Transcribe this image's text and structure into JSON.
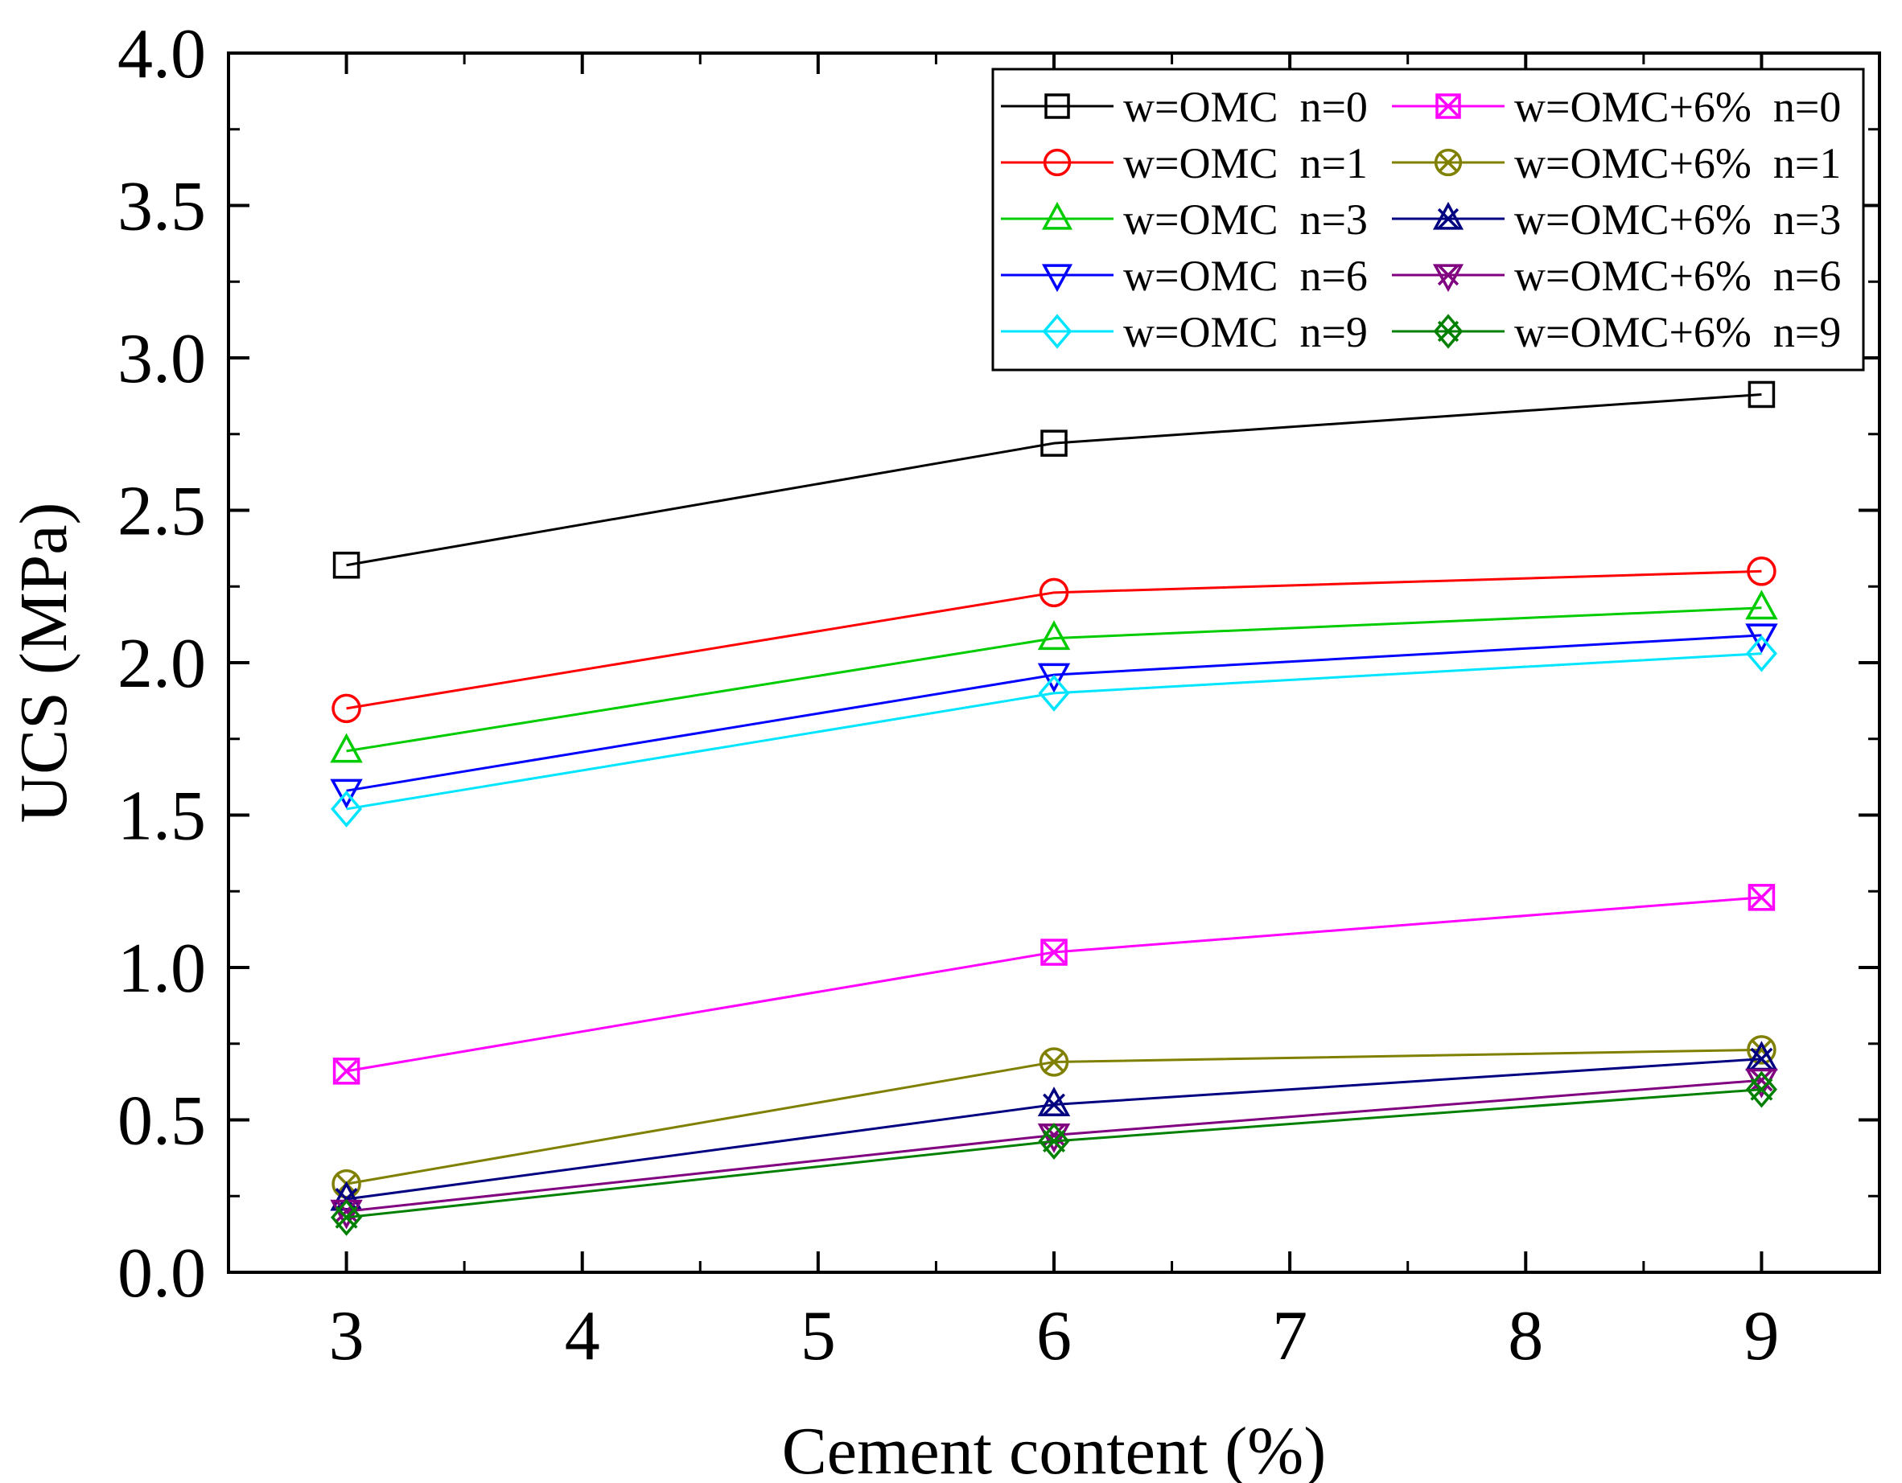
{
  "chart_data": {
    "type": "line",
    "title": "",
    "xlabel": "Cement content (%)",
    "ylabel": "UCS (MPa)",
    "xlim": [
      2.5,
      9.5
    ],
    "ylim": [
      0.0,
      4.0
    ],
    "xticks": [
      3,
      4,
      5,
      6,
      7,
      8,
      9
    ],
    "xtick_labels": [
      "3",
      "4",
      "5",
      "6",
      "7",
      "8",
      "9"
    ],
    "yticks": [
      0.0,
      0.5,
      1.0,
      1.5,
      2.0,
      2.5,
      3.0,
      3.5,
      4.0
    ],
    "ytick_labels": [
      "0.0",
      "0.5",
      "1.0",
      "1.5",
      "2.0",
      "2.5",
      "3.0",
      "3.5",
      "4.0"
    ],
    "grid": false,
    "legend_position": "top-right",
    "x": [
      3,
      6,
      9
    ],
    "series": [
      {
        "name": "w=OMC  n=0",
        "color": "#000000",
        "marker": "square",
        "values": [
          2.32,
          2.72,
          2.88
        ]
      },
      {
        "name": "w=OMC  n=1",
        "color": "#ff0000",
        "marker": "circle",
        "values": [
          1.85,
          2.23,
          2.3
        ]
      },
      {
        "name": "w=OMC  n=3",
        "color": "#00cc00",
        "marker": "triangle-up",
        "values": [
          1.71,
          2.08,
          2.18
        ]
      },
      {
        "name": "w=OMC  n=6",
        "color": "#0000ff",
        "marker": "triangle-down",
        "values": [
          1.58,
          1.96,
          2.09
        ]
      },
      {
        "name": "w=OMC  n=9",
        "color": "#00e5ff",
        "marker": "diamond",
        "values": [
          1.52,
          1.9,
          2.03
        ]
      },
      {
        "name": "w=OMC+6%  n=0",
        "color": "#ff00ff",
        "marker": "square-x",
        "values": [
          0.66,
          1.05,
          1.23
        ]
      },
      {
        "name": "w=OMC+6%  n=1",
        "color": "#808000",
        "marker": "circle-x",
        "values": [
          0.29,
          0.69,
          0.73
        ]
      },
      {
        "name": "w=OMC+6%  n=3",
        "color": "#000080",
        "marker": "triangle-up-x",
        "values": [
          0.24,
          0.55,
          0.7
        ]
      },
      {
        "name": "w=OMC+6%  n=6",
        "color": "#800080",
        "marker": "triangle-down-x",
        "values": [
          0.2,
          0.45,
          0.63
        ]
      },
      {
        "name": "w=OMC+6%  n=9",
        "color": "#008000",
        "marker": "diamond-x",
        "values": [
          0.18,
          0.43,
          0.6
        ]
      }
    ]
  }
}
